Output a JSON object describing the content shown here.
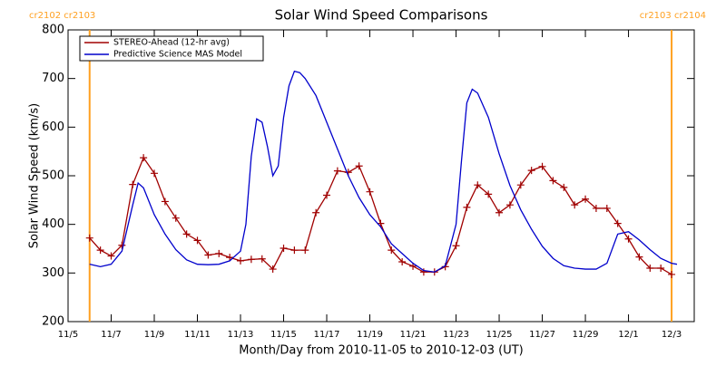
{
  "chart_data": {
    "type": "line",
    "title": "Solar Wind Speed Comparisons",
    "x_label": "Month/Day from 2010-11-05 to 2010-12-03 (UT)",
    "y_label": "Solar Wind Speed (km/s)",
    "xlim": [
      0,
      29.05
    ],
    "ylim": [
      200,
      800
    ],
    "xticks": [
      {
        "value": 0,
        "label": "11/5"
      },
      {
        "value": 2,
        "label": "11/7"
      },
      {
        "value": 4,
        "label": "11/9"
      },
      {
        "value": 6,
        "label": "11/11"
      },
      {
        "value": 8,
        "label": "11/13"
      },
      {
        "value": 10,
        "label": "11/15"
      },
      {
        "value": 12,
        "label": "11/17"
      },
      {
        "value": 14,
        "label": "11/19"
      },
      {
        "value": 16,
        "label": "11/21"
      },
      {
        "value": 18,
        "label": "11/23"
      },
      {
        "value": 20,
        "label": "11/25"
      },
      {
        "value": 22,
        "label": "11/27"
      },
      {
        "value": 24,
        "label": "11/29"
      },
      {
        "value": 26,
        "label": "12/1"
      },
      {
        "value": 28,
        "label": "12/3"
      }
    ],
    "yticks": [
      200,
      300,
      400,
      500,
      600,
      700,
      800
    ],
    "legend": "top-left",
    "boundaries": {
      "color": "#ffa020",
      "x": [
        1,
        28
      ],
      "labels": [
        "cr2102 cr2103",
        "cr2103 cr2104"
      ]
    },
    "series": [
      {
        "name": "STEREO-Ahead (12-hr avg)",
        "color": "#a00000",
        "marker": "+",
        "x": [
          1,
          1.5,
          2,
          2.5,
          3,
          3.5,
          4,
          4.5,
          5,
          5.5,
          6,
          6.5,
          7,
          7.5,
          8,
          8.5,
          9,
          9.5,
          10,
          10.5,
          11,
          11.5,
          12,
          12.5,
          13,
          13.5,
          14,
          14.5,
          15,
          15.5,
          16,
          16.5,
          17,
          17.5,
          18,
          18.5,
          19,
          19.5,
          20,
          20.5,
          21,
          21.5,
          22,
          22.5,
          23,
          23.5,
          24,
          24.5,
          25,
          25.5,
          26,
          26.5,
          27,
          27.5,
          28
        ],
        "values": [
          372,
          347,
          335,
          357,
          482,
          537,
          505,
          447,
          413,
          380,
          367,
          337,
          340,
          332,
          325,
          328,
          329,
          308,
          351,
          347,
          347,
          424,
          460,
          510,
          507,
          520,
          467,
          402,
          347,
          323,
          314,
          302,
          302,
          313,
          356,
          435,
          481,
          462,
          424,
          440,
          481,
          511,
          519,
          490,
          476,
          440,
          452,
          433,
          433,
          402,
          370,
          333,
          310,
          310,
          297
        ]
      },
      {
        "name": "Predictive Science MAS Model",
        "color": "#0000cc",
        "x": [
          1,
          1.5,
          2,
          2.5,
          3,
          3.25,
          3.5,
          4,
          4.5,
          5,
          5.5,
          6,
          6.5,
          7,
          7.5,
          8,
          8.25,
          8.5,
          8.75,
          9,
          9.25,
          9.5,
          9.75,
          10,
          10.25,
          10.5,
          10.75,
          11,
          11.5,
          12,
          12.5,
          13,
          13.5,
          14,
          14.5,
          15,
          15.5,
          16,
          16.5,
          17,
          17.5,
          18,
          18.25,
          18.5,
          18.75,
          19,
          19.5,
          20,
          20.5,
          21,
          21.5,
          22,
          22.5,
          23,
          23.5,
          24,
          24.5,
          25,
          25.5,
          26,
          26.5,
          27,
          27.5,
          28,
          28.25
        ],
        "values": [
          318,
          313,
          318,
          345,
          440,
          485,
          475,
          420,
          380,
          348,
          327,
          318,
          317,
          318,
          325,
          345,
          400,
          540,
          617,
          610,
          560,
          500,
          520,
          620,
          685,
          715,
          712,
          700,
          665,
          610,
          555,
          500,
          455,
          420,
          395,
          360,
          340,
          320,
          305,
          302,
          315,
          400,
          530,
          650,
          678,
          670,
          620,
          545,
          480,
          430,
          390,
          355,
          330,
          315,
          310,
          308,
          308,
          320,
          380,
          385,
          368,
          348,
          330,
          320,
          318
        ]
      }
    ]
  }
}
